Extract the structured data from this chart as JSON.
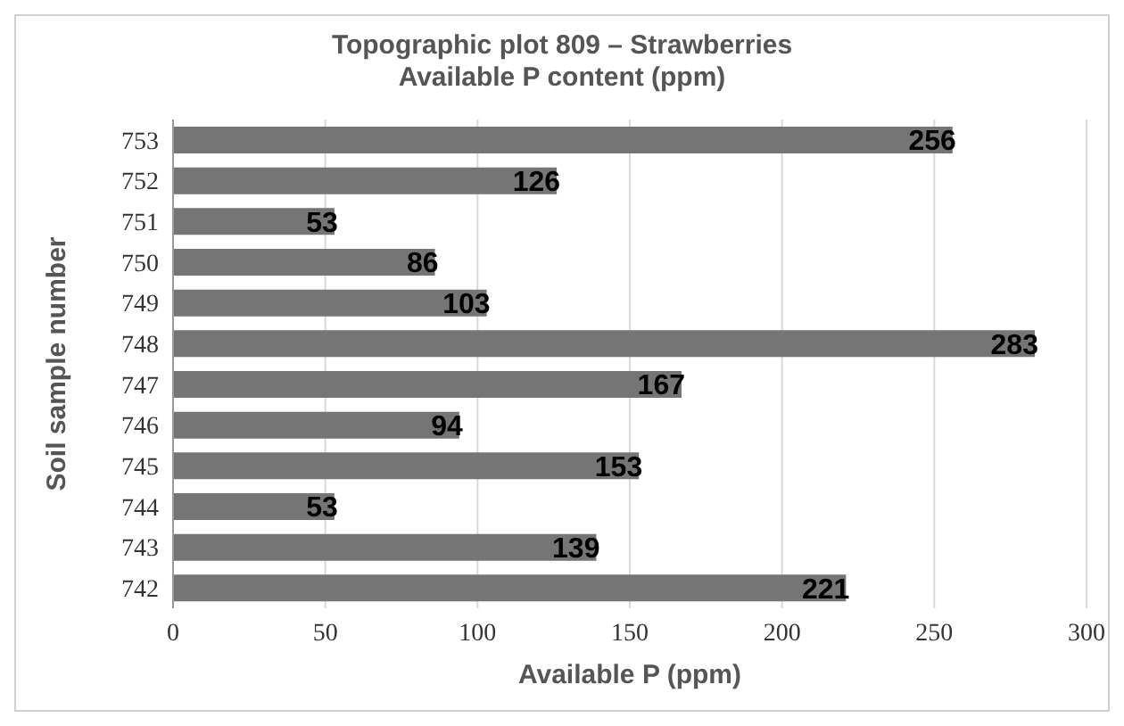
{
  "chart_data": {
    "type": "bar",
    "orientation": "horizontal",
    "title": "Topographic plot 809 – Strawberries",
    "subtitle": "Available P content (ppm)",
    "xlabel": "Available P (ppm)",
    "ylabel": "Soil sample number",
    "categories": [
      "753",
      "752",
      "751",
      "750",
      "749",
      "748",
      "747",
      "746",
      "745",
      "744",
      "743",
      "742"
    ],
    "values": [
      256,
      126,
      53,
      86,
      103,
      283,
      167,
      94,
      153,
      53,
      139,
      221
    ],
    "color": "#757575",
    "xlim": [
      0,
      300
    ],
    "xticks": [
      0,
      50,
      100,
      150,
      200,
      250,
      300
    ],
    "grid": "x",
    "data_labels": true
  }
}
